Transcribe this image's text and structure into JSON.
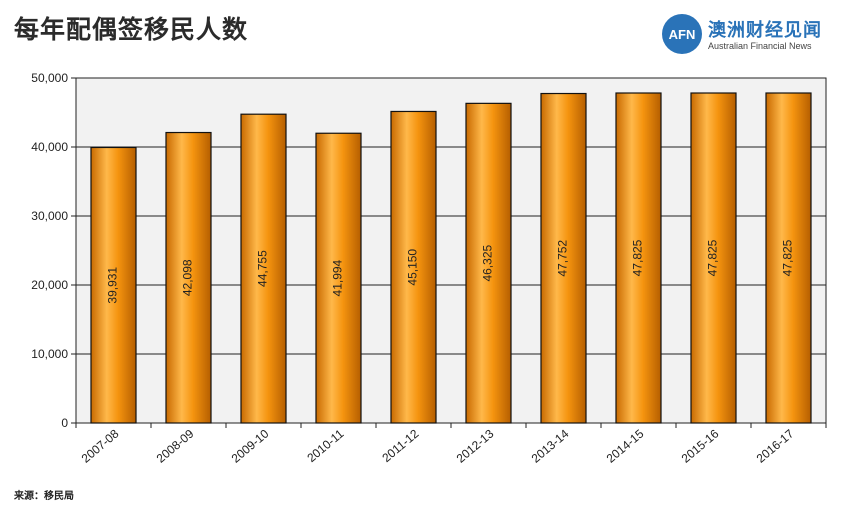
{
  "title": "每年配偶签移民人数",
  "logo": {
    "mark": "AFN",
    "name_cn": "澳洲财经见闻",
    "name_en": "Australian Financial News",
    "color": "#2a73b8"
  },
  "source": "来源：移民局",
  "chart_data": {
    "type": "bar",
    "title": "每年配偶签移民人数",
    "categories": [
      "2007-08",
      "2008-09",
      "2009-10",
      "2010-11",
      "2011-12",
      "2012-13",
      "2013-14",
      "2014-15",
      "2015-16",
      "2016-17"
    ],
    "values": [
      39931,
      42098,
      44755,
      41994,
      45150,
      46325,
      47752,
      47825,
      47825,
      47825
    ],
    "value_labels": [
      "39,931",
      "42,098",
      "44,755",
      "41,994",
      "45,150",
      "46,325",
      "47,752",
      "47,825",
      "47,825",
      "47,825"
    ],
    "yticks": [
      0,
      10000,
      20000,
      30000,
      40000,
      50000
    ],
    "ytick_labels": [
      "0",
      "10,000",
      "20,000",
      "30,000",
      "40,000",
      "50,000"
    ],
    "ylim": [
      0,
      50000
    ],
    "xlabel": "",
    "ylabel": "",
    "grid": true,
    "bar_color": "#f5940f",
    "bar_highlight": "#ffc66b",
    "plot_background": "#f2f2f2"
  }
}
